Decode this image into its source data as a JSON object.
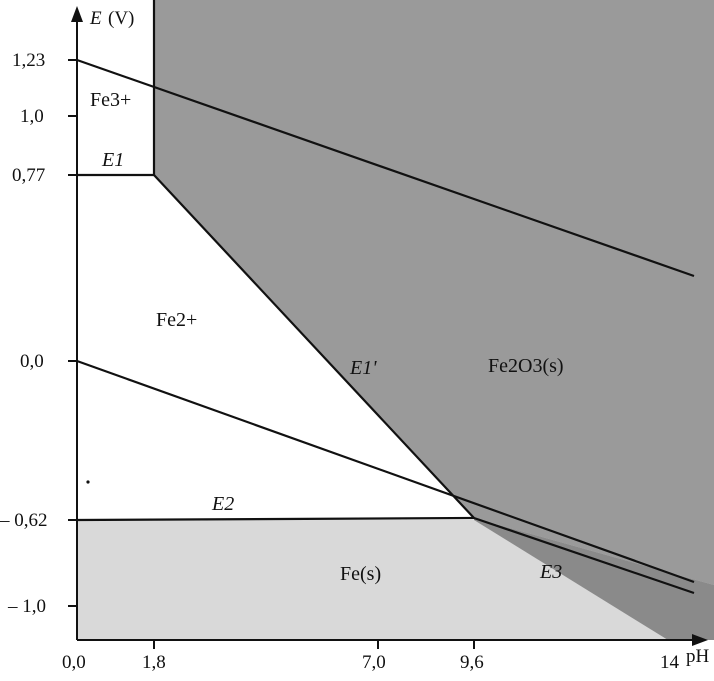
{
  "diagram": {
    "axes": {
      "y_symbol": "E",
      "y_unit": "(V)",
      "x_unit": "pH",
      "x_ticks": [
        "0,0",
        "1,8",
        "7,0",
        "9,6",
        "14"
      ],
      "y_ticks": [
        "1,23",
        "1,0",
        "0,77",
        "0,0",
        "– 0,62",
        "– 1,0"
      ]
    },
    "regions": {
      "fe3": "Fe3+",
      "fe2": "Fe2+",
      "fe2o3": "Fe2O3(s)",
      "fe": "Fe(s)"
    },
    "line_labels": {
      "e1": "E1",
      "e1_prime": "E1'",
      "e2": "E2",
      "e3": "E3"
    },
    "colors": {
      "dark_region": "#9a9a9a",
      "light_region": "#d9d9d9",
      "background": "#ffffff",
      "lines": "#111111"
    }
  }
}
